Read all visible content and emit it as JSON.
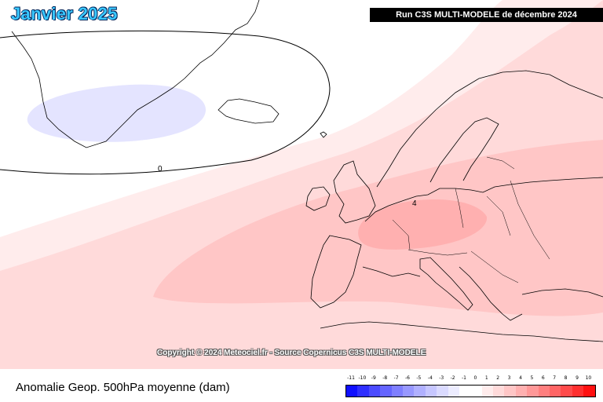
{
  "header": {
    "title": "Janvier 2025",
    "run_info": "Run C3S MULTI-MODELE de décembre 2024"
  },
  "map": {
    "contour_labels": [
      "0",
      "4"
    ],
    "copyright": "Copyright © 2024 Meteociel.fr - Source Copernicus C3S MULTI-MODELE"
  },
  "footer": {
    "caption": "Anomalie Geop. 500hPa moyenne (dam)"
  },
  "legend": {
    "ticks": [
      "-11",
      "-10",
      "-9",
      "-8",
      "-7",
      "-6",
      "-5",
      "-4",
      "-3",
      "-2",
      "-1",
      "0",
      "1",
      "2",
      "3",
      "4",
      "5",
      "6",
      "7",
      "8",
      "9",
      "10"
    ],
    "colors": [
      "#1010ff",
      "#2f2fff",
      "#4b4bff",
      "#6565ff",
      "#7f7fff",
      "#9898ff",
      "#b0b0ff",
      "#c6c6ff",
      "#dadaff",
      "#ececff",
      "#ffffff",
      "#ffffff",
      "#ffecec",
      "#ffdada",
      "#ffc6c6",
      "#ffb0b0",
      "#ff9898",
      "#ff7f7f",
      "#ff6565",
      "#ff4b4b",
      "#ff2f2f",
      "#ff1010"
    ]
  },
  "colors": {
    "title": "#39c8ff",
    "anomaly_1": "#ffecec",
    "anomaly_2": "#ffdada",
    "anomaly_3": "#ffc6c6",
    "anomaly_4": "#ffb0b0",
    "anomaly_neg1": "#e4e4ff"
  }
}
